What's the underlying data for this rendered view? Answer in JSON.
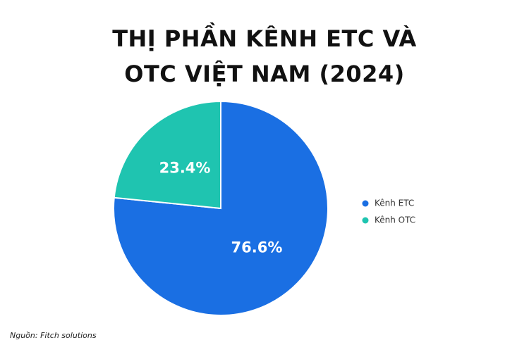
{
  "chart_data": {
    "type": "pie",
    "title": "THỊ PHẦN KÊNH ETC VÀ OTC VIỆT NAM (2024)",
    "categories": [
      "Kênh ETC",
      "Kênh OTC"
    ],
    "values": [
      76.6,
      23.4
    ],
    "value_labels": [
      "76.6%",
      "23.4%"
    ],
    "colors": [
      "#1a6fe3",
      "#1fc4b0"
    ],
    "legend": "right",
    "source": "Nguồn: Fitch solutions"
  }
}
